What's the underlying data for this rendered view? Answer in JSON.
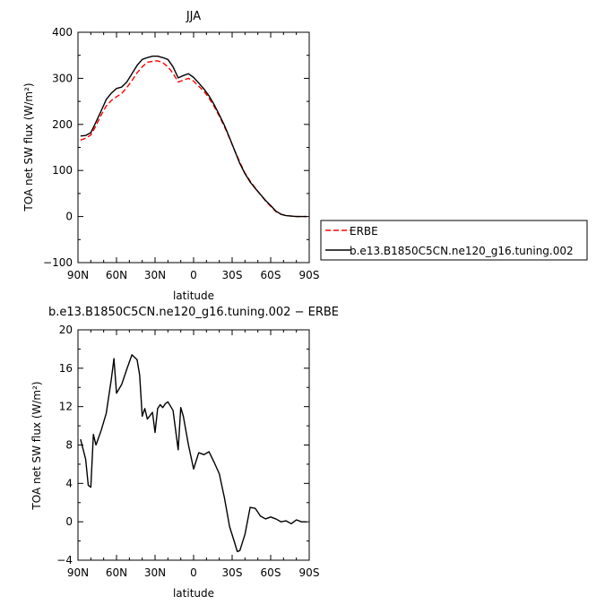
{
  "chart_data": [
    {
      "type": "line",
      "title": "JJA",
      "xlabel": "latitude",
      "ylabel": "TOA net SW flux (W/m²)",
      "xlim": [
        90,
        -90
      ],
      "ylim": [
        -100,
        400
      ],
      "xtick_values": [
        90,
        60,
        30,
        0,
        -30,
        -60,
        -90
      ],
      "xtick_labels": [
        "90N",
        "60N",
        "30N",
        "0",
        "30S",
        "60S",
        "90S"
      ],
      "ytick_values": [
        -100,
        0,
        100,
        200,
        300,
        400
      ],
      "ytick_labels": [
        "−100",
        "0",
        "100",
        "200",
        "300",
        "400"
      ],
      "legend_position": "right",
      "grid": false,
      "series": [
        {
          "name": "ERBE",
          "color": "#ff0000",
          "dash": "dashed",
          "x": [
            88,
            84,
            80,
            76,
            72,
            68,
            64,
            60,
            56,
            52,
            48,
            44,
            40,
            36,
            32,
            28,
            24,
            20,
            16,
            12,
            8,
            4,
            0,
            -4,
            -8,
            -12,
            -16,
            -20,
            -24,
            -28,
            -32,
            -36,
            -40,
            -44,
            -48,
            -52,
            -56,
            -60,
            -64,
            -68,
            -72,
            -76,
            -80,
            -84,
            -88
          ],
          "values": [
            166,
            170,
            177,
            197,
            220,
            240,
            252,
            260,
            267,
            280,
            295,
            312,
            325,
            335,
            337,
            338,
            334,
            325,
            311,
            292,
            296,
            300,
            294,
            283,
            272,
            257,
            239,
            218,
            195,
            170,
            143,
            118,
            94,
            77,
            62,
            48,
            34,
            22,
            11,
            5,
            2,
            1,
            0,
            0,
            0
          ]
        },
        {
          "name": "b.e13.B1850C5CN.ne120_g16.tuning.002",
          "color": "#000000",
          "dash": "solid",
          "x": [
            88,
            84,
            80,
            76,
            72,
            68,
            64,
            60,
            56,
            52,
            48,
            44,
            40,
            36,
            32,
            28,
            24,
            20,
            16,
            12,
            8,
            4,
            0,
            -4,
            -8,
            -12,
            -16,
            -20,
            -24,
            -28,
            -32,
            -36,
            -40,
            -44,
            -48,
            -52,
            -56,
            -60,
            -64,
            -68,
            -72,
            -76,
            -80,
            -84,
            -88
          ],
          "values": [
            175,
            176,
            182,
            205,
            229,
            254,
            268,
            278,
            281,
            292,
            310,
            328,
            341,
            345,
            348,
            348,
            345,
            341,
            325,
            301,
            306,
            310,
            302,
            290,
            277,
            262,
            243,
            221,
            198,
            171,
            143,
            115,
            93,
            75,
            61,
            48,
            35,
            24,
            12,
            5,
            2,
            1,
            0,
            0,
            0
          ]
        }
      ]
    },
    {
      "type": "line",
      "title": "b.e13.B1850C5CN.ne120_g16.tuning.002 − ERBE",
      "xlabel": "latitude",
      "ylabel": "TOA net SW flux (W/m²)",
      "xlim": [
        90,
        -90
      ],
      "ylim": [
        -4,
        20
      ],
      "xtick_values": [
        90,
        60,
        30,
        0,
        -30,
        -60,
        -90
      ],
      "xtick_labels": [
        "90N",
        "60N",
        "30N",
        "0",
        "30S",
        "60S",
        "90S"
      ],
      "ytick_values": [
        -4,
        0,
        4,
        8,
        12,
        16,
        20
      ],
      "ytick_labels": [
        "−4",
        "0",
        "4",
        "8",
        "12",
        "16",
        "20"
      ],
      "grid": false,
      "series": [
        {
          "color": "#000000",
          "dash": "solid",
          "x": [
            88,
            84,
            82,
            80,
            78,
            76,
            72,
            68,
            64,
            62,
            60,
            56,
            52,
            48,
            44,
            42,
            40,
            38,
            36,
            32,
            30,
            28,
            26,
            24,
            22,
            20,
            16,
            12,
            10,
            8,
            4,
            0,
            -4,
            -8,
            -12,
            -16,
            -20,
            -24,
            -28,
            -32,
            -34,
            -36,
            -40,
            -42,
            -44,
            -48,
            -52,
            -56,
            -60,
            -64,
            -68,
            -72,
            -76,
            -80,
            -84,
            -88
          ],
          "values": [
            8.6,
            6.5,
            3.8,
            3.6,
            9.1,
            8.0,
            9.5,
            11.3,
            14.9,
            17.0,
            13.4,
            14.3,
            15.9,
            17.4,
            16.9,
            15.3,
            11.0,
            11.8,
            10.7,
            11.4,
            9.3,
            11.8,
            12.2,
            11.9,
            12.3,
            12.5,
            11.6,
            7.5,
            11.9,
            11.0,
            8.0,
            5.5,
            7.2,
            7.0,
            7.3,
            6.2,
            5.0,
            2.5,
            -0.5,
            -2.2,
            -3.1,
            -3.0,
            -1.3,
            0.1,
            1.5,
            1.4,
            0.6,
            0.3,
            0.5,
            0.3,
            0.0,
            0.1,
            -0.2,
            0.2,
            0.0,
            0.0
          ]
        }
      ]
    }
  ]
}
